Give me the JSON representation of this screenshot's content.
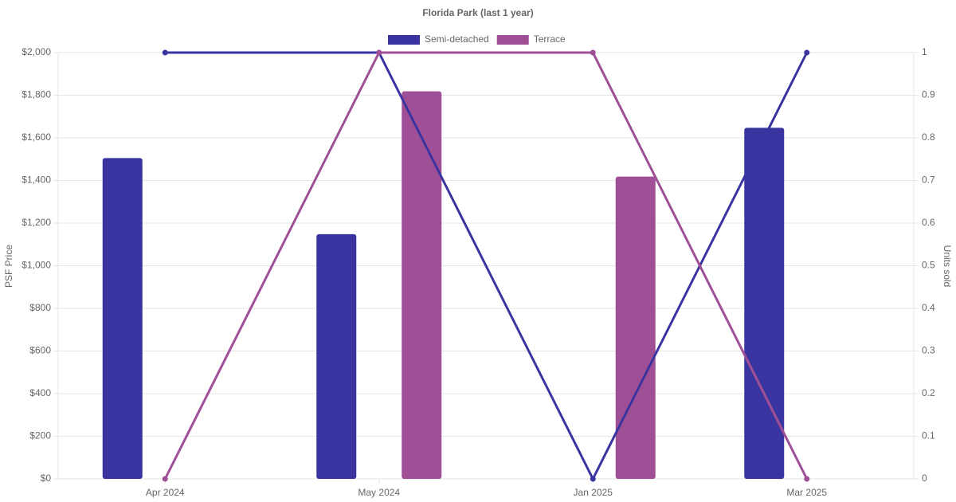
{
  "chart_data": {
    "type": "bar-line",
    "title": "Florida Park (last 1 year)",
    "y_label": "PSF Price",
    "y2_label": "Units sold",
    "categories": [
      "Apr 2024",
      "May 2024",
      "Jan 2025",
      "Mar 2025"
    ],
    "series": [
      {
        "name": "Semi-detached",
        "color": "#3a34a0",
        "values": [
          1505,
          1148,
          null,
          1647
        ],
        "units_sold": [
          1,
          1,
          0,
          1
        ]
      },
      {
        "name": "Terrace",
        "color": "#9e4f96",
        "values": [
          null,
          1818,
          1418,
          null
        ],
        "units_sold": [
          0,
          1,
          1,
          0
        ]
      }
    ],
    "ylim": [
      0,
      2000
    ],
    "yticks": [
      {
        "value": 0,
        "label": "$0"
      },
      {
        "value": 200,
        "label": "$200"
      },
      {
        "value": 400,
        "label": "$400"
      },
      {
        "value": 600,
        "label": "$600"
      },
      {
        "value": 800,
        "label": "$800"
      },
      {
        "value": 1000,
        "label": "$1,000"
      },
      {
        "value": 1200,
        "label": "$1,200"
      },
      {
        "value": 1400,
        "label": "$1,400"
      },
      {
        "value": 1600,
        "label": "$1,600"
      },
      {
        "value": 1800,
        "label": "$1,800"
      },
      {
        "value": 2000,
        "label": "$2,000"
      }
    ],
    "y2lim": [
      0,
      1
    ],
    "y2ticks": [
      0,
      0.1,
      0.2,
      0.3,
      0.4,
      0.5,
      0.6,
      0.7,
      0.8,
      0.9,
      1
    ],
    "grid": true
  }
}
